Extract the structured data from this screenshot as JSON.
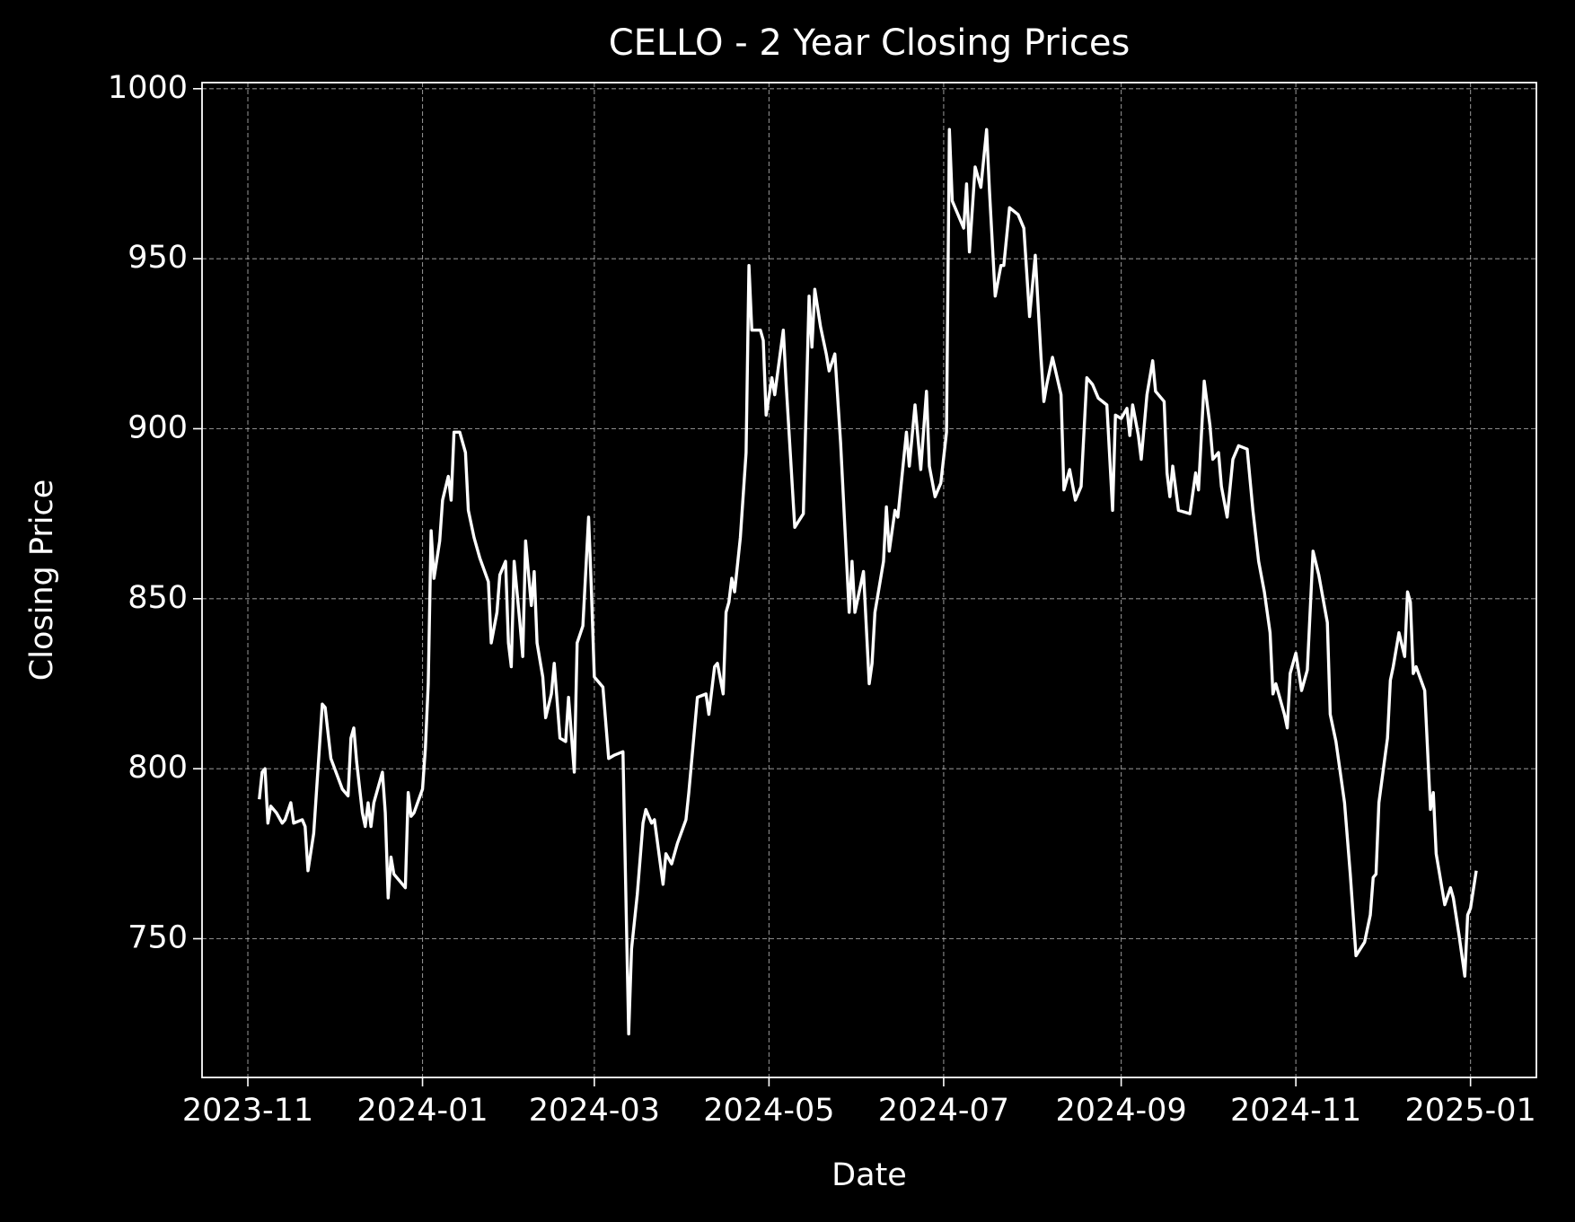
{
  "chart_data": {
    "type": "line",
    "title": "CELLO - 2 Year Closing Prices",
    "xlabel": "Date",
    "ylabel": "Closing Price",
    "color": "#ffffff",
    "background": "#000000",
    "grid": true,
    "xlim": [
      "2023-10-16",
      "2025-01-24"
    ],
    "xticks": [
      "2023-11",
      "2024-01",
      "2024-03",
      "2024-05",
      "2024-07",
      "2024-09",
      "2024-11",
      "2025-01"
    ],
    "ylim": [
      709.2,
      1001.8
    ],
    "yticks": [
      750,
      800,
      850,
      900,
      950,
      1000
    ],
    "x": [
      "2023-11-05",
      "2023-11-06",
      "2023-11-07",
      "2023-11-08",
      "2023-11-09",
      "2023-11-11",
      "2023-11-13",
      "2023-11-14",
      "2023-11-16",
      "2023-11-17",
      "2023-11-20",
      "2023-11-21",
      "2023-11-22",
      "2023-11-24",
      "2023-11-27",
      "2023-11-28",
      "2023-11-30",
      "2023-12-04",
      "2023-12-06",
      "2023-12-07",
      "2023-12-08",
      "2023-12-09",
      "2023-12-11",
      "2023-12-12",
      "2023-12-13",
      "2023-12-14",
      "2023-12-15",
      "2023-12-18",
      "2023-12-19",
      "2023-12-20",
      "2023-12-21",
      "2023-12-22",
      "2023-12-26",
      "2023-12-27",
      "2023-12-28",
      "2023-12-29",
      "2024-01-01",
      "2024-01-02",
      "2024-01-03",
      "2024-01-04",
      "2024-01-05",
      "2024-01-07",
      "2024-01-08",
      "2024-01-10",
      "2024-01-11",
      "2024-01-12",
      "2024-01-14",
      "2024-01-16",
      "2024-01-17",
      "2024-01-19",
      "2024-01-21",
      "2024-01-24",
      "2024-01-25",
      "2024-01-27",
      "2024-01-28",
      "2024-01-30",
      "2024-01-31",
      "2024-02-01",
      "2024-02-02",
      "2024-02-04",
      "2024-02-05",
      "2024-02-06",
      "2024-02-08",
      "2024-02-09",
      "2024-02-10",
      "2024-02-12",
      "2024-02-13",
      "2024-02-15",
      "2024-02-16",
      "2024-02-18",
      "2024-02-20",
      "2024-02-21",
      "2024-02-23",
      "2024-02-24",
      "2024-02-26",
      "2024-02-28",
      "2024-02-29",
      "2024-03-01",
      "2024-03-04",
      "2024-03-06",
      "2024-03-08",
      "2024-03-11",
      "2024-03-13",
      "2024-03-14",
      "2024-03-16",
      "2024-03-18",
      "2024-03-19",
      "2024-03-21",
      "2024-03-22",
      "2024-03-25",
      "2024-03-26",
      "2024-03-28",
      "2024-03-30",
      "2024-04-02",
      "2024-04-03",
      "2024-04-06",
      "2024-04-09",
      "2024-04-10",
      "2024-04-12",
      "2024-04-13",
      "2024-04-15",
      "2024-04-16",
      "2024-04-17",
      "2024-04-18",
      "2024-04-19",
      "2024-04-21",
      "2024-04-23",
      "2024-04-24",
      "2024-04-25",
      "2024-04-28",
      "2024-04-29",
      "2024-04-30",
      "2024-05-02",
      "2024-05-03",
      "2024-05-06",
      "2024-05-07",
      "2024-05-10",
      "2024-05-13",
      "2024-05-15",
      "2024-05-16",
      "2024-05-17",
      "2024-05-19",
      "2024-05-21",
      "2024-05-22",
      "2024-05-24",
      "2024-05-26",
      "2024-05-29",
      "2024-05-30",
      "2024-05-31",
      "2024-06-03",
      "2024-06-05",
      "2024-06-06",
      "2024-06-07",
      "2024-06-10",
      "2024-06-11",
      "2024-06-12",
      "2024-06-14",
      "2024-06-15",
      "2024-06-18",
      "2024-06-19",
      "2024-06-21",
      "2024-06-23",
      "2024-06-25",
      "2024-06-26",
      "2024-06-28",
      "2024-06-30",
      "2024-07-02",
      "2024-07-03",
      "2024-07-04",
      "2024-07-06",
      "2024-07-08",
      "2024-07-09",
      "2024-07-10",
      "2024-07-12",
      "2024-07-14",
      "2024-07-16",
      "2024-07-17",
      "2024-07-19",
      "2024-07-21",
      "2024-07-22",
      "2024-07-24",
      "2024-07-27",
      "2024-07-29",
      "2024-07-31",
      "2024-08-02",
      "2024-08-04",
      "2024-08-05",
      "2024-08-06",
      "2024-08-08",
      "2024-08-11",
      "2024-08-12",
      "2024-08-14",
      "2024-08-16",
      "2024-08-18",
      "2024-08-20",
      "2024-08-22",
      "2024-08-24",
      "2024-08-27",
      "2024-08-29",
      "2024-08-30",
      "2024-09-01",
      "2024-09-03",
      "2024-09-04",
      "2024-09-05",
      "2024-09-07",
      "2024-09-08",
      "2024-09-10",
      "2024-09-12",
      "2024-09-13",
      "2024-09-16",
      "2024-09-17",
      "2024-09-18",
      "2024-09-19",
      "2024-09-21",
      "2024-09-25",
      "2024-09-27",
      "2024-09-28",
      "2024-09-30",
      "2024-10-02",
      "2024-10-03",
      "2024-10-05",
      "2024-10-06",
      "2024-10-08",
      "2024-10-10",
      "2024-10-12",
      "2024-10-15",
      "2024-10-17",
      "2024-10-19",
      "2024-10-21",
      "2024-10-23",
      "2024-10-24",
      "2024-10-25",
      "2024-10-28",
      "2024-10-29",
      "2024-10-30",
      "2024-11-01",
      "2024-11-03",
      "2024-11-05",
      "2024-11-07",
      "2024-11-09",
      "2024-11-12",
      "2024-11-13",
      "2024-11-15",
      "2024-11-18",
      "2024-11-20",
      "2024-11-22",
      "2024-11-25",
      "2024-11-27",
      "2024-11-28",
      "2024-11-29",
      "2024-11-30",
      "2024-12-03",
      "2024-12-04",
      "2024-12-05",
      "2024-12-07",
      "2024-12-09",
      "2024-12-10",
      "2024-12-11",
      "2024-12-12",
      "2024-12-13",
      "2024-12-16",
      "2024-12-18",
      "2024-12-19",
      "2024-12-20",
      "2024-12-23",
      "2024-12-25",
      "2024-12-26",
      "2024-12-28",
      "2024-12-30",
      "2024-12-31",
      "2025-01-01",
      "2025-01-03"
    ],
    "values": [
      791,
      799,
      800,
      784,
      789,
      787,
      784,
      785,
      790,
      784,
      785,
      783,
      770,
      781,
      819,
      818,
      803,
      794,
      792,
      809,
      812,
      802,
      787,
      783,
      790,
      783,
      790,
      799,
      787,
      762,
      774,
      769,
      765,
      793,
      786,
      787,
      794,
      806,
      825,
      870,
      856,
      867,
      879,
      886,
      879,
      899,
      899,
      893,
      876,
      868,
      862,
      855,
      837,
      846,
      857,
      861,
      837,
      830,
      861,
      843,
      833,
      867,
      848,
      858,
      837,
      827,
      815,
      822,
      831,
      809,
      808,
      821,
      799,
      837,
      842,
      874,
      852,
      827,
      824,
      803,
      804,
      805,
      722,
      747,
      763,
      784,
      788,
      784,
      785,
      766,
      775,
      772,
      778,
      785,
      793,
      821,
      822,
      816,
      830,
      831,
      822,
      846,
      849,
      856,
      852,
      868,
      893,
      948,
      929,
      929,
      926,
      904,
      915,
      910,
      929,
      913,
      871,
      875,
      939,
      924,
      941,
      930,
      922,
      917,
      922,
      896,
      846,
      861,
      846,
      858,
      825,
      831,
      846,
      861,
      877,
      864,
      876,
      874,
      899,
      889,
      907,
      888,
      911,
      889,
      880,
      884,
      899,
      988,
      967,
      963,
      959,
      972,
      952,
      977,
      971,
      988,
      970,
      939,
      948,
      948,
      965,
      963,
      959,
      933,
      951,
      921,
      908,
      913,
      921,
      910,
      882,
      888,
      879,
      883,
      915,
      913,
      909,
      907,
      876,
      904,
      903,
      906,
      898,
      907,
      898,
      891,
      910,
      920,
      911,
      908,
      887,
      880,
      889,
      876,
      875,
      887,
      882,
      914,
      901,
      891,
      893,
      883,
      874,
      891,
      895,
      894,
      876,
      861,
      852,
      840,
      822,
      825,
      816,
      812,
      828,
      834,
      823,
      829,
      864,
      857,
      843,
      816,
      808,
      790,
      769,
      745,
      749,
      757,
      768,
      769,
      790,
      809,
      826,
      830,
      840,
      833,
      852,
      849,
      828,
      830,
      823,
      788,
      793,
      775,
      760,
      765,
      762,
      751,
      739,
      757,
      759,
      770
    ]
  }
}
